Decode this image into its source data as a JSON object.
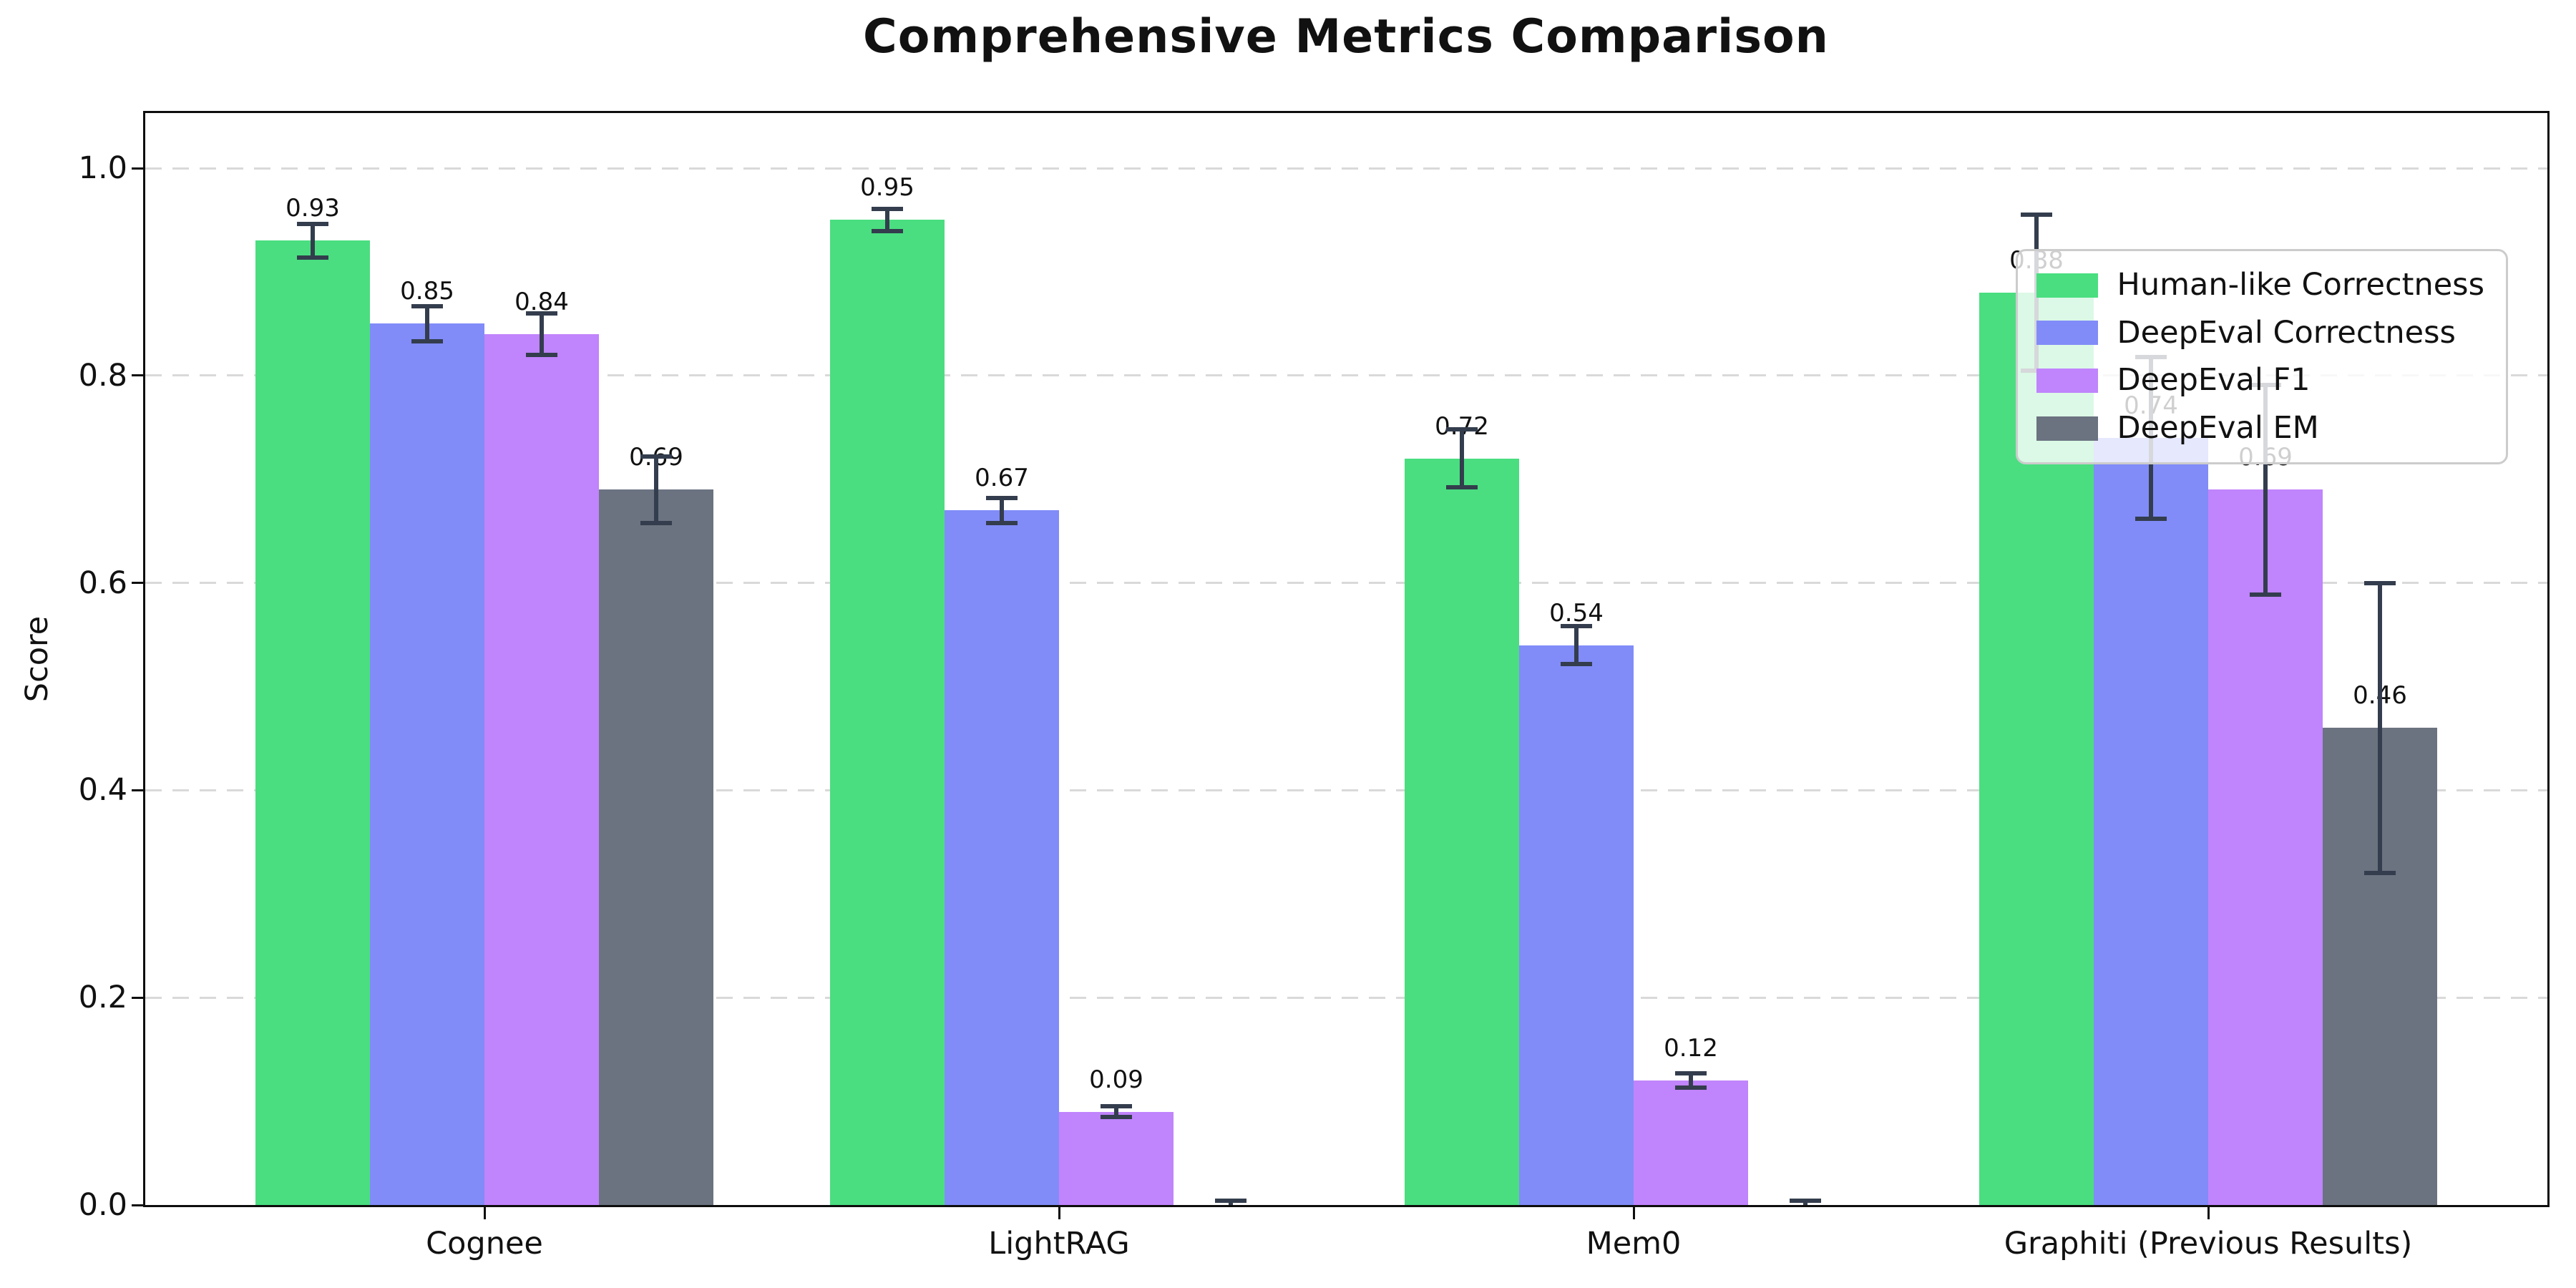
{
  "title": "Comprehensive Metrics Comparison",
  "chart_data": {
    "type": "bar",
    "title": "Comprehensive Metrics Comparison",
    "ylabel": "Score",
    "xlabel": "",
    "categories": [
      "Cognee",
      "LightRAG",
      "Mem0",
      "Graphiti (Previous Results)"
    ],
    "series": [
      {
        "name": "Human-like Correctness",
        "color": "#4ade80",
        "values": [
          0.93,
          0.95,
          0.72,
          0.88
        ],
        "errors": [
          0.016,
          0.011,
          0.028,
          0.075
        ],
        "labels": [
          "0.93",
          "0.95",
          "0.72",
          "0.88"
        ]
      },
      {
        "name": "DeepEval Correctness",
        "color": "#818cf8",
        "values": [
          0.85,
          0.67,
          0.54,
          0.74
        ],
        "errors": [
          0.017,
          0.012,
          0.018,
          0.078
        ],
        "labels": [
          "0.85",
          "0.67",
          "0.54",
          "0.74"
        ]
      },
      {
        "name": "DeepEval F1",
        "color": "#c084fc",
        "values": [
          0.84,
          0.09,
          0.12,
          0.69
        ],
        "errors": [
          0.02,
          0.005,
          0.007,
          0.101
        ],
        "labels": [
          "0.84",
          "0.09",
          "0.12",
          "0.69"
        ]
      },
      {
        "name": "DeepEval EM",
        "color": "#6b7280",
        "values": [
          0.69,
          0.0,
          0.0,
          0.46
        ],
        "errors": [
          0.032,
          0.004,
          0.004,
          0.14
        ],
        "labels": [
          "0.69",
          "",
          "",
          "0.46"
        ]
      }
    ],
    "yticks": [
      "0.0",
      "0.2",
      "0.4",
      "0.6",
      "0.8",
      "1.0"
    ],
    "ylim": [
      0.0,
      1.05
    ],
    "grid": {
      "axis": "y",
      "style": "dashed",
      "color": "#d9d9d9"
    },
    "legend": {
      "position": "upper right",
      "items": [
        "Human-like Correctness",
        "DeepEval Correctness",
        "DeepEval F1",
        "DeepEval EM"
      ]
    },
    "error_bar_color": "#333d4d",
    "axis_color": "#0e0e0e",
    "background_color": "#ffffff"
  }
}
